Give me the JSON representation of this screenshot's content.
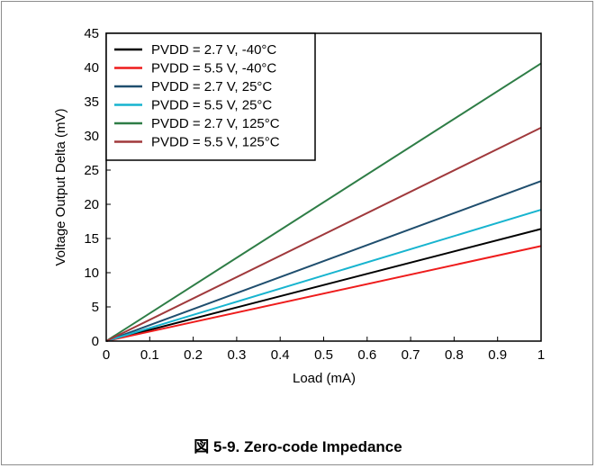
{
  "figure_caption": "図 5-9. Zero-code Impedance",
  "chart_data": {
    "type": "line",
    "title": "",
    "xlabel": "Load (mA)",
    "ylabel": "Voltage Output Delta (mV)",
    "xlim": [
      0,
      1
    ],
    "ylim": [
      0,
      45
    ],
    "xticks": [
      0,
      0.1,
      0.2,
      0.3,
      0.4,
      0.5,
      0.6,
      0.7,
      0.8,
      0.9,
      1
    ],
    "xtick_labels": [
      "0",
      "0.1",
      "0.2",
      "0.3",
      "0.4",
      "0.5",
      "0.6",
      "0.7",
      "0.8",
      "0.9",
      "1"
    ],
    "yticks": [
      0,
      5,
      10,
      15,
      20,
      25,
      30,
      35,
      40,
      45
    ],
    "ytick_labels": [
      "0",
      "5",
      "10",
      "15",
      "20",
      "25",
      "30",
      "35",
      "40",
      "45"
    ],
    "grid": false,
    "legend_position": "top-left",
    "x": [
      0,
      1
    ],
    "series": [
      {
        "name": "PVDD = 2.7 V, -40°C",
        "color": "#000000",
        "values": [
          0,
          16.4
        ]
      },
      {
        "name": "PVDD = 5.5 V, -40°C",
        "color": "#ee1c1c",
        "values": [
          0,
          13.9
        ]
      },
      {
        "name": "PVDD = 2.7 V, 25°C",
        "color": "#1f4e6e",
        "values": [
          0,
          23.4
        ]
      },
      {
        "name": "PVDD = 5.5 V, 25°C",
        "color": "#17b4cf",
        "values": [
          0,
          19.2
        ]
      },
      {
        "name": "PVDD = 2.7 V, 125°C",
        "color": "#2e7d46",
        "values": [
          0,
          40.6
        ]
      },
      {
        "name": "PVDD = 5.5 V, 125°C",
        "color": "#a0393c",
        "values": [
          0,
          31.2
        ]
      }
    ]
  }
}
